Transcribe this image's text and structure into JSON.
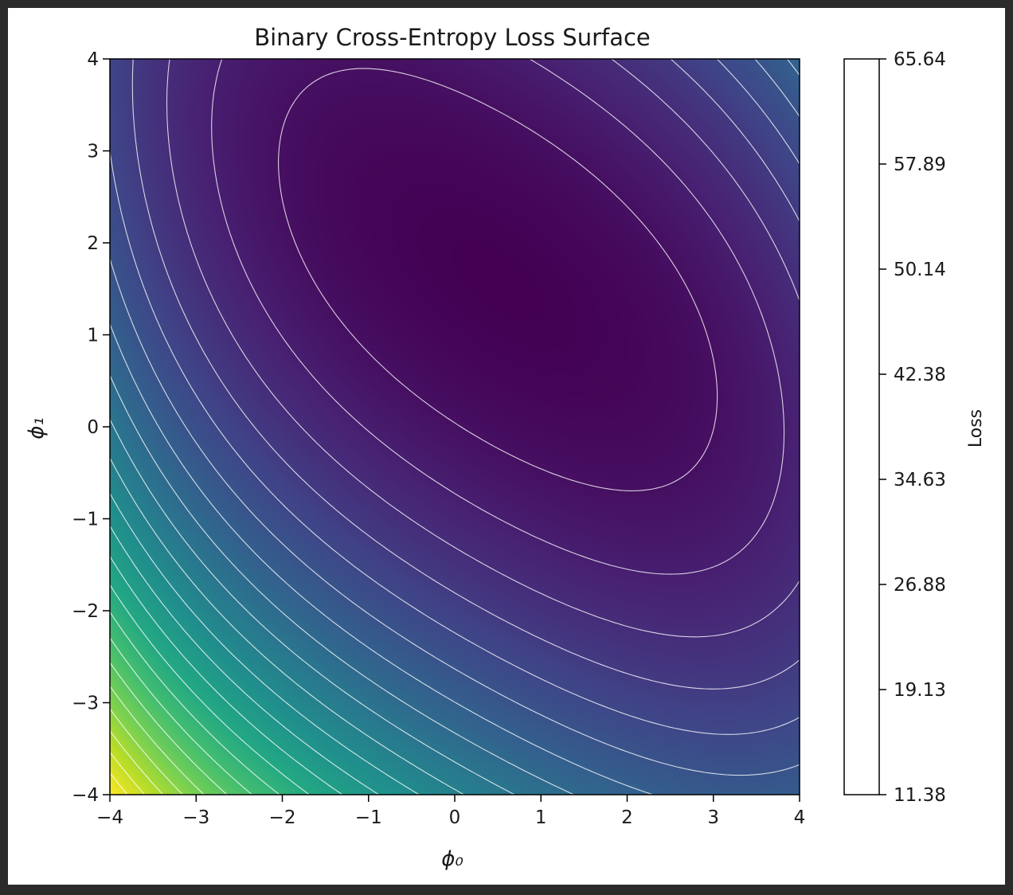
{
  "chart_data": {
    "type": "heatmap",
    "title": "Binary Cross-Entropy Loss Surface",
    "xlabel": "ϕ₀",
    "ylabel": "ϕ₁",
    "xlim": [
      -4,
      4
    ],
    "ylim": [
      -4,
      4
    ],
    "x_ticks": [
      "−4",
      "−3",
      "−2",
      "−1",
      "0",
      "1",
      "2",
      "3",
      "4"
    ],
    "y_ticks": [
      "−4",
      "−3",
      "−2",
      "−1",
      "0",
      "1",
      "2",
      "3",
      "4"
    ],
    "colormap": "viridis",
    "contour_line_color": "#ffffff",
    "colorbar": {
      "label": "Loss",
      "range": [
        11.38,
        65.64
      ],
      "ticks": [
        "11.38",
        "19.13",
        "26.88",
        "34.63",
        "42.38",
        "50.14",
        "57.89",
        "65.64"
      ]
    },
    "minimum": {
      "x": 0.5,
      "y": 1.6
    }
  }
}
